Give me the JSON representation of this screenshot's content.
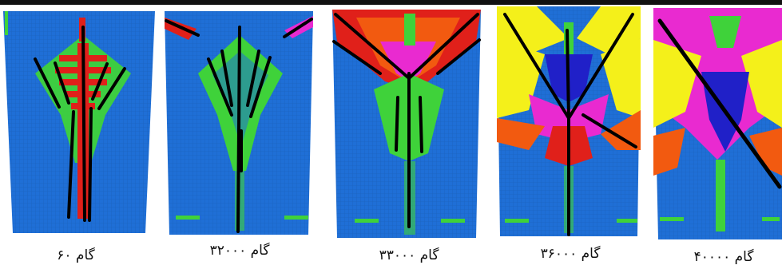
{
  "captions": {
    "step60": "گام ۶۰",
    "step32000": "گام ۳۲۰۰۰",
    "step33000": "گام ۳۳۰۰۰",
    "step36000": "گام ۳۶۰۰۰",
    "step40000": "گام ۴۰۰۰۰"
  },
  "colors": {
    "background": "#1f6fd6",
    "green": "#3fd23a",
    "red": "#e0201a",
    "orange": "#f25a10",
    "magenta": "#e92ad0",
    "yellow": "#f4f01a",
    "darkblue": "#2020c8",
    "crack": "#000000"
  }
}
